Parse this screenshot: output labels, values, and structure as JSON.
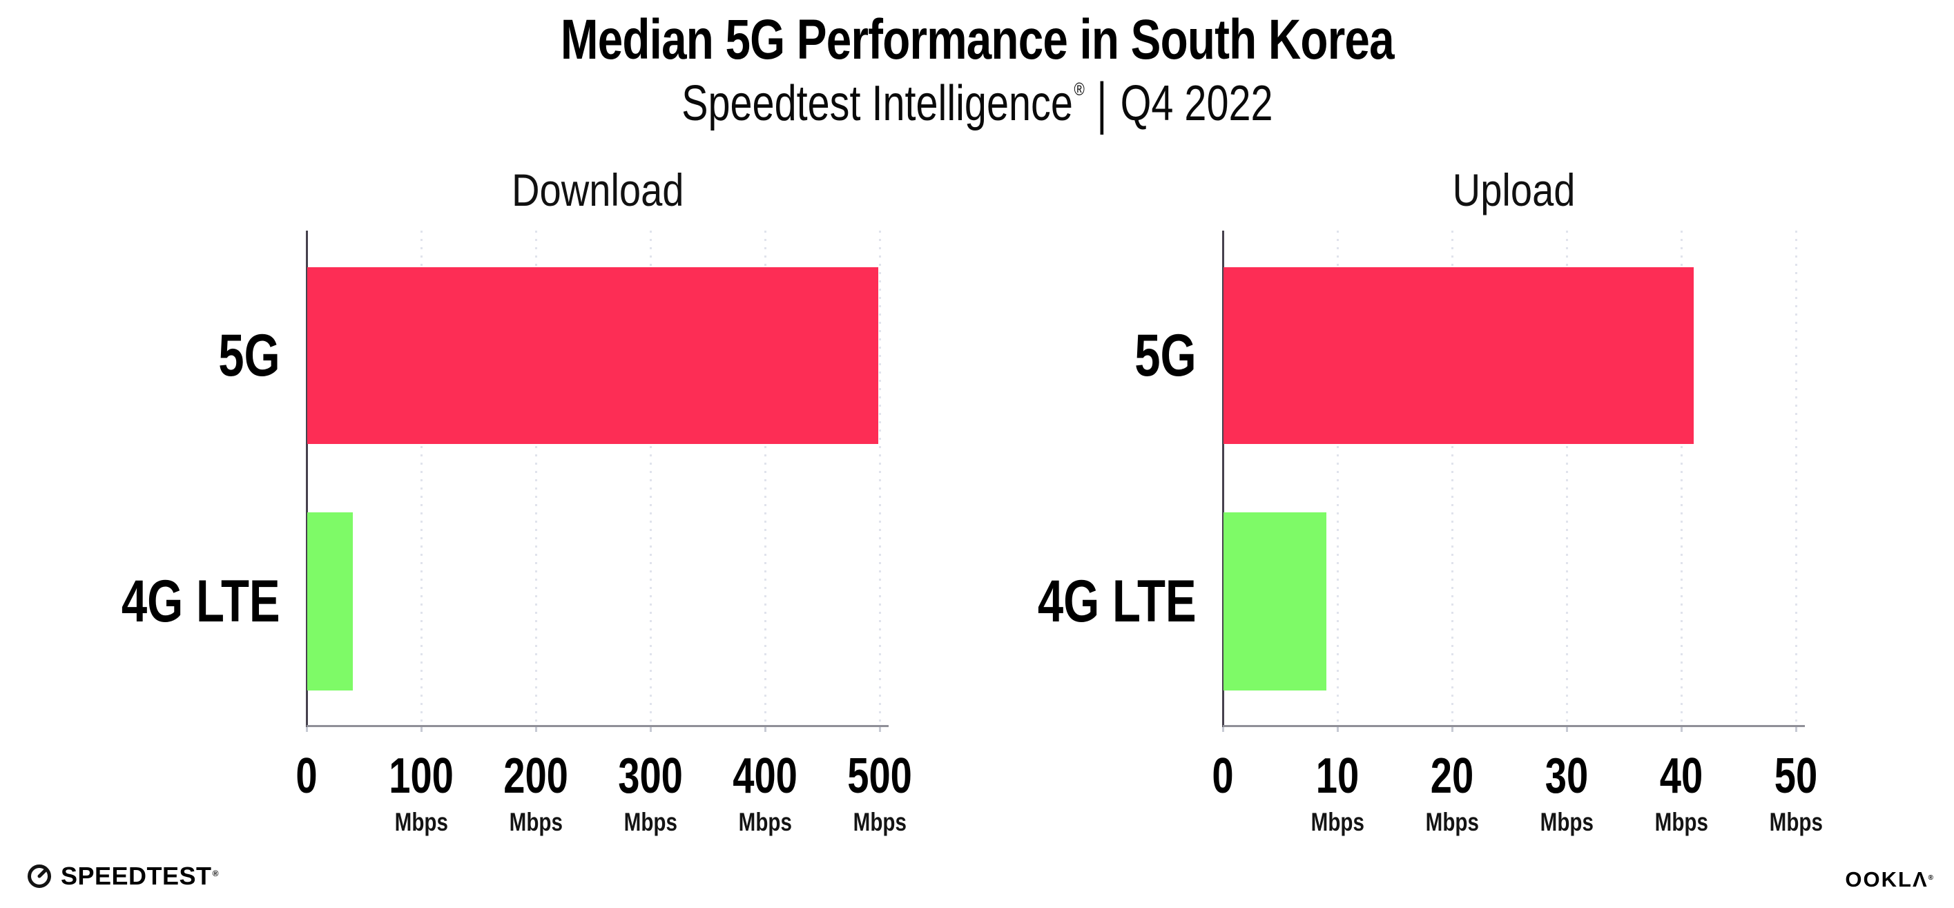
{
  "header": {
    "title": "Median 5G Performance in South Korea",
    "subtitle": {
      "brand": "Speedtest Intelligence",
      "reg": "®",
      "separator": "|",
      "period": "Q4 2022"
    }
  },
  "colors": {
    "bar_5g": "#FD2D55",
    "bar_4g_lte": "#7EFA67",
    "gridline": "#E0E3EC",
    "axis_x": "#8F8F97",
    "axis_y": "#46414D",
    "text": "#000000"
  },
  "chart_data": [
    {
      "type": "bar",
      "orientation": "horizontal",
      "title": "Download",
      "categories": [
        "5G",
        "4G LTE"
      ],
      "values": [
        498,
        40
      ],
      "unit": "Mbps",
      "xlim": [
        0,
        500
      ],
      "grid": "dotted-vertical",
      "legend_position": "none",
      "ticks": [
        {
          "value": 0,
          "label": "0",
          "unit": ""
        },
        {
          "value": 100,
          "label": "100",
          "unit": "Mbps"
        },
        {
          "value": 200,
          "label": "200",
          "unit": "Mbps"
        },
        {
          "value": 300,
          "label": "300",
          "unit": "Mbps"
        },
        {
          "value": 400,
          "label": "400",
          "unit": "Mbps"
        },
        {
          "value": 500,
          "label": "500",
          "unit": "Mbps"
        }
      ]
    },
    {
      "type": "bar",
      "orientation": "horizontal",
      "title": "Upload",
      "categories": [
        "5G",
        "4G LTE"
      ],
      "values": [
        41,
        9
      ],
      "unit": "Mbps",
      "xlim": [
        0,
        50
      ],
      "grid": "dotted-vertical",
      "legend_position": "none",
      "ticks": [
        {
          "value": 0,
          "label": "0",
          "unit": ""
        },
        {
          "value": 10,
          "label": "10",
          "unit": "Mbps"
        },
        {
          "value": 20,
          "label": "20",
          "unit": "Mbps"
        },
        {
          "value": 30,
          "label": "30",
          "unit": "Mbps"
        },
        {
          "value": 40,
          "label": "40",
          "unit": "Mbps"
        },
        {
          "value": 50,
          "label": "50",
          "unit": "Mbps"
        }
      ]
    }
  ],
  "footer": {
    "speedtest_logo_text": "SPEEDTEST",
    "speedtest_reg": "®",
    "ookla_logo_text": "OOKLΛ",
    "ookla_reg": "®"
  }
}
